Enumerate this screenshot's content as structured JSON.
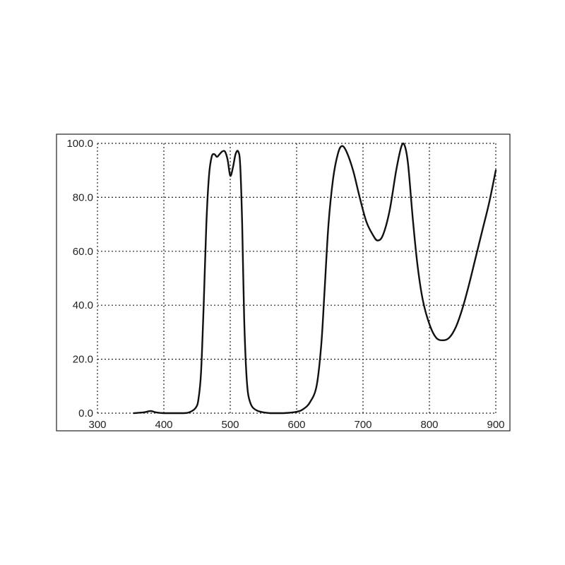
{
  "chart_data": {
    "type": "line",
    "title": "",
    "xlabel": "",
    "ylabel": "",
    "xlim": [
      300,
      900
    ],
    "ylim": [
      0,
      100
    ],
    "grid": true,
    "x_ticks": [
      300,
      400,
      500,
      600,
      700,
      800,
      900
    ],
    "y_ticks": [
      0,
      20,
      40,
      60,
      80,
      100
    ],
    "x_tick_labels": [
      "300",
      "400",
      "500",
      "600",
      "700",
      "800",
      "900"
    ],
    "y_tick_labels": [
      "0.0",
      "20.0",
      "40.0",
      "60.0",
      "80.0",
      "100.0"
    ],
    "series": [
      {
        "color": "#111111",
        "points": [
          [
            355,
            0
          ],
          [
            370,
            0.3
          ],
          [
            380,
            0.8
          ],
          [
            388,
            0.3
          ],
          [
            400,
            0
          ],
          [
            430,
            0
          ],
          [
            440,
            0.5
          ],
          [
            448,
            2
          ],
          [
            452,
            5
          ],
          [
            456,
            15
          ],
          [
            460,
            40
          ],
          [
            464,
            70
          ],
          [
            468,
            88
          ],
          [
            472,
            95
          ],
          [
            476,
            96
          ],
          [
            480,
            95
          ],
          [
            484,
            96
          ],
          [
            488,
            97
          ],
          [
            492,
            97
          ],
          [
            496,
            94
          ],
          [
            500,
            88
          ],
          [
            504,
            91
          ],
          [
            508,
            96
          ],
          [
            512,
            97
          ],
          [
            515,
            92
          ],
          [
            518,
            70
          ],
          [
            521,
            35
          ],
          [
            525,
            12
          ],
          [
            530,
            4
          ],
          [
            540,
            1
          ],
          [
            560,
            0
          ],
          [
            580,
            0
          ],
          [
            600,
            0.5
          ],
          [
            610,
            1.5
          ],
          [
            620,
            4
          ],
          [
            630,
            10
          ],
          [
            637,
            25
          ],
          [
            642,
            45
          ],
          [
            648,
            70
          ],
          [
            655,
            87
          ],
          [
            662,
            96
          ],
          [
            668,
            99
          ],
          [
            675,
            97
          ],
          [
            685,
            90
          ],
          [
            695,
            80
          ],
          [
            705,
            71
          ],
          [
            715,
            66
          ],
          [
            722,
            64
          ],
          [
            730,
            66
          ],
          [
            740,
            75
          ],
          [
            750,
            90
          ],
          [
            758,
            99
          ],
          [
            763,
            99
          ],
          [
            768,
            92
          ],
          [
            775,
            72
          ],
          [
            782,
            55
          ],
          [
            790,
            42
          ],
          [
            800,
            33
          ],
          [
            810,
            28
          ],
          [
            820,
            27
          ],
          [
            830,
            28
          ],
          [
            840,
            32
          ],
          [
            850,
            39
          ],
          [
            860,
            48
          ],
          [
            870,
            58
          ],
          [
            880,
            68
          ],
          [
            890,
            78
          ],
          [
            900,
            90
          ]
        ]
      }
    ]
  }
}
